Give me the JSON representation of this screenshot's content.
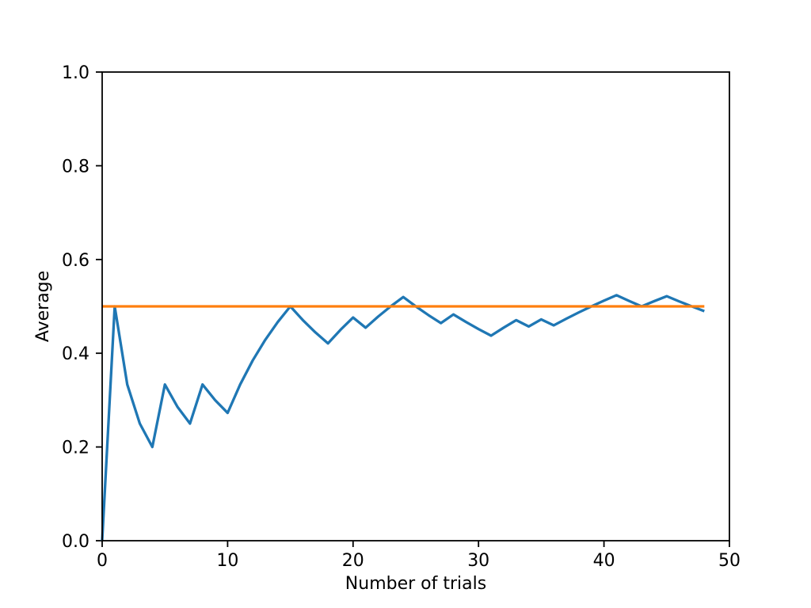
{
  "figure": {
    "background": "#ffffff"
  },
  "chart_data": {
    "type": "line",
    "title": "",
    "xlabel": "Number of trials",
    "ylabel": "Average",
    "xlim": [
      0,
      50
    ],
    "ylim": [
      0.0,
      1.0
    ],
    "x_ticks": [
      "0",
      "10",
      "20",
      "30",
      "40",
      "50"
    ],
    "y_ticks": [
      "0.0",
      "0.2",
      "0.4",
      "0.6",
      "0.8",
      "1.0"
    ],
    "grid": false,
    "legend_position": "none",
    "axis_color": "#000000",
    "series": [
      {
        "name": "running-average",
        "color": "#1f77b4",
        "x": [
          0,
          1,
          2,
          3,
          4,
          5,
          6,
          7,
          8,
          9,
          10,
          11,
          12,
          13,
          14,
          15,
          16,
          17,
          18,
          19,
          20,
          21,
          22,
          23,
          24,
          25,
          26,
          27,
          28,
          29,
          30,
          31,
          32,
          33,
          34,
          35,
          36,
          37,
          38,
          39,
          40,
          41,
          42,
          43,
          44,
          45,
          46,
          47,
          48
        ],
        "y": [
          0.0,
          0.5,
          0.3333,
          0.25,
          0.2,
          0.3333,
          0.2857,
          0.25,
          0.3333,
          0.3,
          0.2727,
          0.3333,
          0.3846,
          0.4286,
          0.4667,
          0.5,
          0.4706,
          0.4444,
          0.4211,
          0.45,
          0.4762,
          0.4545,
          0.4783,
          0.5,
          0.52,
          0.5,
          0.4815,
          0.4643,
          0.4828,
          0.4667,
          0.4516,
          0.4375,
          0.4545,
          0.4706,
          0.4571,
          0.4722,
          0.4595,
          0.4737,
          0.4872,
          0.5,
          0.5122,
          0.5238,
          0.5116,
          0.5,
          0.5111,
          0.5217,
          0.5106,
          0.5,
          0.4898
        ]
      },
      {
        "name": "expected-value",
        "color": "#ff7f0e",
        "x": [
          0,
          48
        ],
        "y": [
          0.5,
          0.5
        ]
      }
    ]
  }
}
